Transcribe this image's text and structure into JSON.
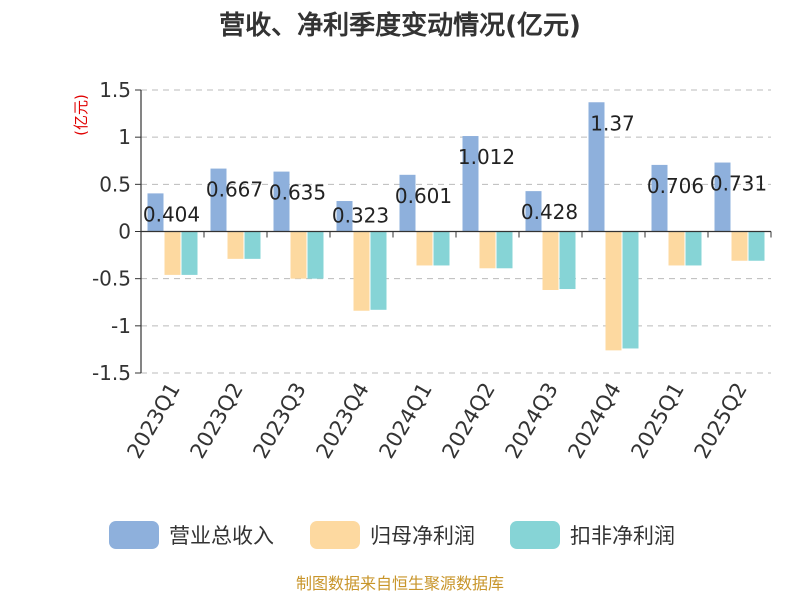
{
  "chart_data": {
    "type": "bar",
    "title": "营收、净利季度变动情况(亿元)",
    "unit_label": "(亿元)",
    "categories": [
      "2023Q1",
      "2023Q2",
      "2023Q3",
      "2023Q4",
      "2024Q1",
      "2024Q2",
      "2024Q3",
      "2024Q4",
      "2025Q1",
      "2025Q2"
    ],
    "series": [
      {
        "name": "营业总收入",
        "color": "#8eb0dc",
        "values": [
          0.404,
          0.667,
          0.635,
          0.323,
          0.601,
          1.012,
          0.428,
          1.37,
          0.706,
          0.731
        ]
      },
      {
        "name": "归母净利润",
        "color": "#fdd9a0",
        "values": [
          -0.46,
          -0.29,
          -0.5,
          -0.84,
          -0.36,
          -0.39,
          -0.62,
          -1.26,
          -0.36,
          -0.31
        ]
      },
      {
        "name": "扣非净利润",
        "color": "#86d4d6",
        "values": [
          -0.46,
          -0.29,
          -0.5,
          -0.83,
          -0.36,
          -0.39,
          -0.61,
          -1.24,
          -0.36,
          -0.31
        ]
      }
    ],
    "data_labels": [
      "0.404",
      "0.667",
      "0.635",
      "0.323",
      "0.601",
      "1.012",
      "0.428",
      "1.37",
      "0.706",
      "0.731"
    ],
    "ylim": [
      -1.5,
      1.5
    ],
    "yticks": [
      {
        "value": 1.5,
        "label": "1.5"
      },
      {
        "value": 1,
        "label": "1"
      },
      {
        "value": 0.5,
        "label": "0.5"
      },
      {
        "value": 0,
        "label": "0"
      },
      {
        "value": -0.5,
        "label": "-0.5"
      },
      {
        "value": -1,
        "label": "-1"
      },
      {
        "value": -1.5,
        "label": "-1.5"
      }
    ],
    "grid": true,
    "legend_position": "bottom"
  },
  "source": "制图数据来自恒生聚源数据库"
}
